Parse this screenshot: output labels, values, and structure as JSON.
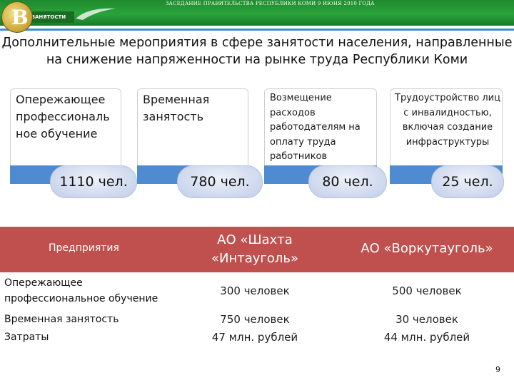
{
  "header": {
    "banner_text": "ЗАСЕДАНИЕ ПРАВИТЕЛЬСТВА РЕСПУБЛИКИ КОМИ 9 ИЮНЯ 2010 ГОДА",
    "logo_label": "ЗАНЯТОСТИ"
  },
  "title": {
    "line1": "Дополнительные мероприятия в сфере занятости населения, направленные",
    "line2": "на снижение напряженности на рынке труда Республики Коми"
  },
  "cards": [
    {
      "label": "Опережающее профессиональ ное обучение",
      "value": "1110 чел."
    },
    {
      "label": "Временная занятость",
      "value": "780 чел."
    },
    {
      "label": "Возмещение расходов работодателям на оплату труда работников",
      "value": "80 чел."
    },
    {
      "label": "Трудоустройство лиц с инвалидностью, включая создание инфраструктуры",
      "value": "25 чел."
    }
  ],
  "table": {
    "header": {
      "col0": "Предприятия",
      "col1": "АО «Шахта «Интауголь»",
      "col2": "АО «Воркутауголь»"
    },
    "rows": [
      {
        "col0": "Опережающее профессиональное обучение",
        "col1": "300 человек",
        "col2": "500 человек"
      },
      {
        "col0_line1": "Временная занятость",
        "col0_line2": "Затраты",
        "col1_line1": "750 человек",
        "col1_line2": "47 млн. рублей",
        "col2_line1": "30 человек",
        "col2_line2": "44 млн. рублей"
      }
    ]
  },
  "page_number": "9",
  "colors": {
    "header_green": "#2aa33b",
    "card_blue": "#4f8bd0",
    "table_header_red": "#c0504d"
  }
}
